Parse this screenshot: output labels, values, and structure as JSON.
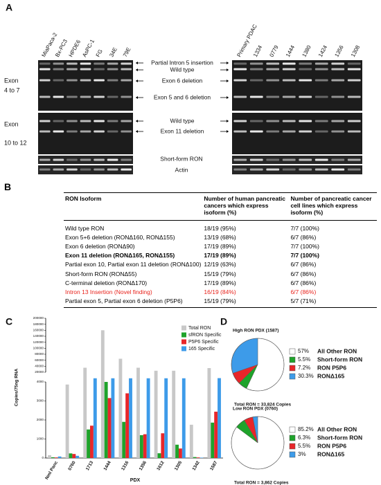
{
  "panel_a": {
    "label": "A",
    "lanes_left": [
      "MiaPaca-2",
      "Bx-PC3",
      "HPDE6",
      "AsPC-1",
      "FG",
      "34E",
      "79E"
    ],
    "lanes_right": [
      "Primary PDAC",
      "1334",
      "0779",
      "1444",
      "1380",
      "1424",
      "1356",
      "1308"
    ],
    "rows": [
      [
        "Exon",
        "4 to 7"
      ],
      [
        "Exon",
        "10 to 12"
      ]
    ],
    "annotations": [
      "Partial Intron 5 insertion",
      "Wild type",
      "Exon 6 deletion",
      "Exon 5 and 6 deletion",
      "Wild type",
      "Exon 11 deletion",
      "Short-form RON",
      "Actin"
    ]
  },
  "panel_b": {
    "label": "B",
    "table": {
      "header": [
        "RON Isoform",
        "Number of human pancreatic cancers which express isoform (%)",
        "Number of pancreatic cancer cell lines which express isoform (%)"
      ],
      "rows": [
        [
          "Wild type RON",
          "18/19 (95%)",
          "7/7 (100%)"
        ],
        [
          "Exon 5+6 deletion (RONΔ160, RONΔ155)",
          "13/19 (68%)",
          "6/7 (86%)"
        ],
        [
          "Exon 6 deletion (RONΔ90)",
          "17/19 (89%)",
          "7/7 (100%)"
        ],
        [
          "Exon 11 deletion (RONΔ165, RONΔ155)",
          "17/19 (89%)",
          "7/7 (100%)"
        ],
        [
          "Partial exon 10, Partial exon 11 deletion (RONΔ100)",
          "12/19 (63%)",
          "6/7 (86%)"
        ],
        [
          "Short-form RON (RONΔ55)",
          "15/19 (79%)",
          "6/7 (86%)"
        ],
        [
          "C-terminal deletion (RONΔ170)",
          "17/19 (89%)",
          "6/7 (86%)"
        ],
        [
          "Intron 13 Insertion (Novel finding)",
          "16/19 (84%)",
          "6/7 (86%)"
        ],
        [
          "Partial exon 5, Partial exon 6 deletion (P5P6)",
          "15/19 (79%)",
          "5/7 (71%)"
        ]
      ]
    },
    "bold_rows": [
      3
    ],
    "red_rows": [
      7
    ],
    "red_color": "#e8221b"
  },
  "chart_data": [
    {
      "type": "bar",
      "panel_label": "C",
      "x_label": "PDX",
      "y_label": "Copies/75ng RNA",
      "categories": [
        "Nml Panc",
        "0760",
        "1713",
        "1444",
        "1316",
        "1356",
        "1612",
        "1305",
        "1342",
        "1587"
      ],
      "series": [
        {
          "name": "Total RON",
          "color": "#c8c8c8",
          "values": [
            150,
            3862,
            35000,
            160000,
            65000,
            35000,
            25000,
            25000,
            1750,
            33824
          ]
        },
        {
          "name": "sfRON Specific",
          "color": "#1fa32b",
          "values": [
            40,
            243,
            1500,
            4000,
            1900,
            1200,
            250,
            700,
            50,
            1860
          ]
        },
        {
          "name": "P5P6 Specific",
          "color": "#e8262a",
          "values": [
            30,
            212,
            1700,
            3150,
            3400,
            1250,
            1300,
            500,
            30,
            2435
          ]
        },
        {
          "name": "165 Specific",
          "color": "#3d9be9",
          "values": [
            80,
            116,
            10000,
            10000,
            10000,
            10000,
            10000,
            10000,
            20,
            10249
          ]
        }
      ],
      "ylim": [
        0,
        200000
      ],
      "ybreak": [
        4000,
        20000
      ],
      "yticks": [
        0,
        1000,
        2000,
        3000,
        4000,
        20000,
        40000,
        60000,
        80000,
        100000,
        120000,
        140000,
        160000,
        180000,
        200000
      ]
    },
    {
      "type": "pie",
      "panel_label": "D",
      "title": "High RON PDX (1587)",
      "categories": [
        "All Other RON",
        "Short-form RON",
        "RON P5P6",
        "RONΔ165"
      ],
      "values": [
        57,
        5.5,
        7.2,
        30.3
      ],
      "value_labels": [
        "57%",
        "5.5%",
        "7.2%",
        "30.3%"
      ],
      "colors": [
        "#ffffff",
        "#1fa32b",
        "#e8262a",
        "#3d9be9"
      ],
      "annotation": "Total RON = 33,824 Copies"
    },
    {
      "type": "pie",
      "title": "Low RON PDX (0760)",
      "categories": [
        "All Other RON",
        "Short-form RON",
        "RON P5P6",
        "RONΔ165"
      ],
      "values": [
        85.2,
        6.3,
        5.5,
        3
      ],
      "value_labels": [
        "85.2%",
        "6.3%",
        "5.5%",
        "3%"
      ],
      "colors": [
        "#ffffff",
        "#1fa32b",
        "#e8262a",
        "#3d9be9"
      ],
      "annotation": "Total RON = 3,862 Copies"
    }
  ]
}
